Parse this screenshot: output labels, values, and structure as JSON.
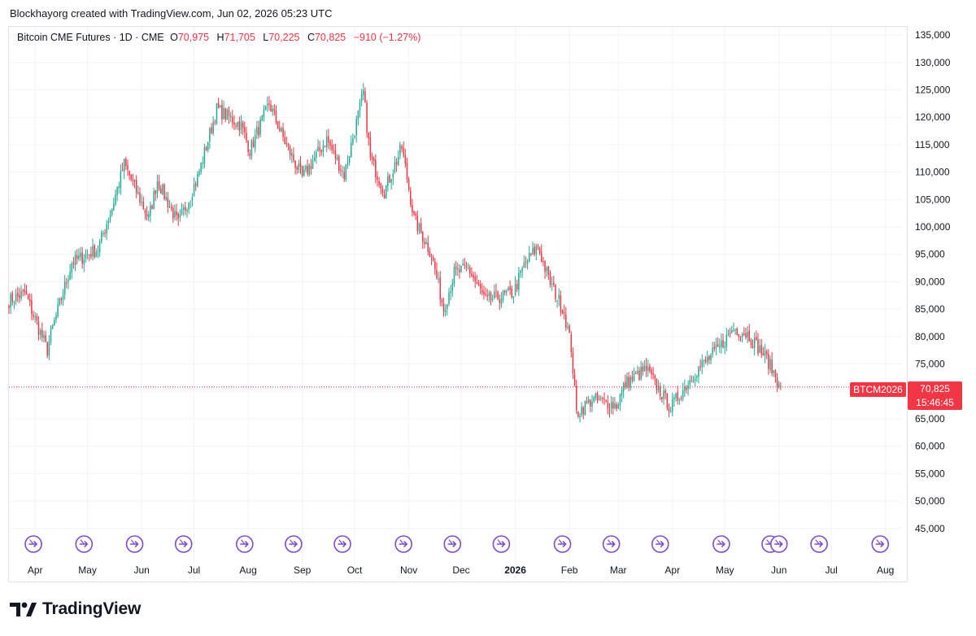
{
  "attribution": "Blockhayorg created with TradingView.com, Jun 02, 2026 05:23 UTC",
  "legend": {
    "symbol": "Bitcoin CME Futures · 1D · CME",
    "open_label": "O",
    "open": "70,975",
    "high_label": "H",
    "high": "71,705",
    "low_label": "L",
    "low": "70,225",
    "close_label": "C",
    "close": "70,825",
    "change": "−910 (−1.27%)"
  },
  "price_label": {
    "ticker": "BTCM2026",
    "last": "70,825",
    "countdown": "15:46:45"
  },
  "brand": "TradingView",
  "colors": {
    "up": "#22ab94",
    "down": "#f23645",
    "grid": "#f0f3fa",
    "event_marker": "#7e4ccb"
  },
  "chart_data": {
    "type": "candlestick",
    "y_ticks": [
      45000,
      50000,
      55000,
      60000,
      65000,
      70000,
      75000,
      80000,
      85000,
      90000,
      95000,
      100000,
      105000,
      110000,
      115000,
      120000,
      125000,
      130000,
      135000
    ],
    "y_tick_labels": [
      "45,000",
      "50,000",
      "55,000",
      "60,000",
      "65,000",
      "70,000",
      "75,000",
      "80,000",
      "85,000",
      "90,000",
      "95,000",
      "100,000",
      "105,000",
      "110,000",
      "115,000",
      "120,000",
      "125,000",
      "130,000",
      "135,000"
    ],
    "ylim": [
      42000,
      136500
    ],
    "x_ticks": [
      {
        "label": "Apr",
        "date": "2025-04-01"
      },
      {
        "label": "May",
        "date": "2025-05-01"
      },
      {
        "label": "Jun",
        "date": "2025-06-01"
      },
      {
        "label": "Jul",
        "date": "2025-07-01"
      },
      {
        "label": "Aug",
        "date": "2025-08-01"
      },
      {
        "label": "Sep",
        "date": "2025-09-01"
      },
      {
        "label": "Oct",
        "date": "2025-10-01"
      },
      {
        "label": "Nov",
        "date": "2025-11-01"
      },
      {
        "label": "Dec",
        "date": "2025-12-01"
      },
      {
        "label": "2026",
        "date": "2026-01-01",
        "bold": true
      },
      {
        "label": "Feb",
        "date": "2026-02-01"
      },
      {
        "label": "Mar",
        "date": "2026-03-01"
      },
      {
        "label": "Apr",
        "date": "2026-04-01"
      },
      {
        "label": "May",
        "date": "2026-05-01"
      },
      {
        "label": "Jun",
        "date": "2026-06-01"
      },
      {
        "label": "Jul",
        "date": "2026-07-01"
      },
      {
        "label": "Aug",
        "date": "2026-08-01"
      }
    ],
    "xlim": [
      "2025-03-17",
      "2026-08-10"
    ],
    "last_close": 70825,
    "event_dates": [
      "2025-03-31",
      "2025-04-29",
      "2025-05-28",
      "2025-06-25",
      "2025-07-30",
      "2025-08-27",
      "2025-09-24",
      "2025-10-29",
      "2025-11-26",
      "2025-12-24",
      "2026-01-28",
      "2026-02-25",
      "2026-03-25",
      "2026-04-29",
      "2026-05-27",
      "2026-06-01",
      "2026-06-24",
      "2026-07-29"
    ],
    "anchors": [
      [
        "2025-03-17",
        86500
      ],
      [
        "2025-03-26",
        88000
      ],
      [
        "2025-04-08",
        77500
      ],
      [
        "2025-04-10",
        80500
      ],
      [
        "2025-04-22",
        93500
      ],
      [
        "2025-05-07",
        96000
      ],
      [
        "2025-05-15",
        103500
      ],
      [
        "2025-05-22",
        111500
      ],
      [
        "2025-06-05",
        101500
      ],
      [
        "2025-06-10",
        108500
      ],
      [
        "2025-06-22",
        100500
      ],
      [
        "2025-07-03",
        109000
      ],
      [
        "2025-07-14",
        121500
      ],
      [
        "2025-07-28",
        118500
      ],
      [
        "2025-08-02",
        114000
      ],
      [
        "2025-08-13",
        122500
      ],
      [
        "2025-08-22",
        115500
      ],
      [
        "2025-09-01",
        109000
      ],
      [
        "2025-09-15",
        116000
      ],
      [
        "2025-09-25",
        109500
      ],
      [
        "2025-10-06",
        124500
      ],
      [
        "2025-10-10",
        112500
      ],
      [
        "2025-10-18",
        106500
      ],
      [
        "2025-10-28",
        114500
      ],
      [
        "2025-11-04",
        101500
      ],
      [
        "2025-11-14",
        95000
      ],
      [
        "2025-11-21",
        85000
      ],
      [
        "2025-11-27",
        91500
      ],
      [
        "2025-12-05",
        92500
      ],
      [
        "2025-12-15",
        86500
      ],
      [
        "2025-12-31",
        88000
      ],
      [
        "2026-01-06",
        93000
      ],
      [
        "2026-01-14",
        96500
      ],
      [
        "2026-01-20",
        90500
      ],
      [
        "2026-01-29",
        84500
      ],
      [
        "2026-02-02",
        78000
      ],
      [
        "2026-02-05",
        66000
      ],
      [
        "2026-02-14",
        68500
      ],
      [
        "2026-02-28",
        67500
      ],
      [
        "2026-03-05",
        71500
      ],
      [
        "2026-03-17",
        74000
      ],
      [
        "2026-03-31",
        67000
      ],
      [
        "2026-04-14",
        73500
      ],
      [
        "2026-04-28",
        78000
      ],
      [
        "2026-05-06",
        81500
      ],
      [
        "2026-05-14",
        80500
      ],
      [
        "2026-05-25",
        76000
      ],
      [
        "2026-06-02",
        70825
      ]
    ]
  }
}
